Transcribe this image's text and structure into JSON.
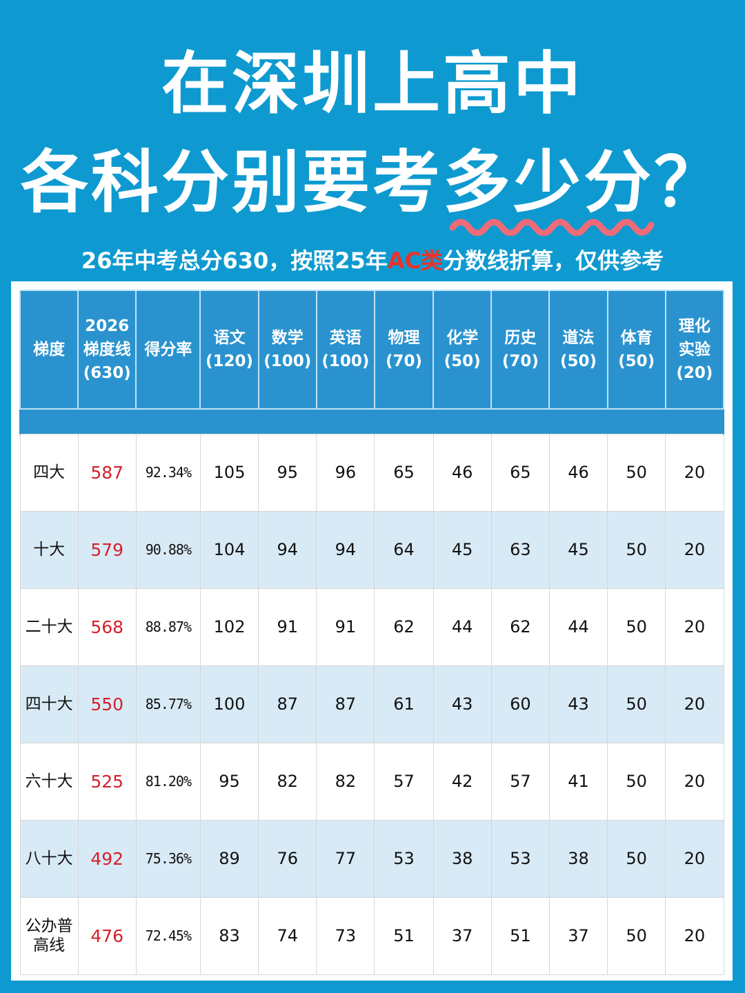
{
  "title": {
    "line1": "在深圳上高中",
    "line2_prefix": "各科分别要考",
    "line2_highlight": "多少分",
    "line2_suffix": "？"
  },
  "subtitle": {
    "prefix": "26年中考总分630，按照25年",
    "accent": "AC类",
    "suffix": "分数线折算，仅供参考"
  },
  "colors": {
    "background": "#0e9ad0",
    "header": "#2a93cf",
    "accent_red": "#d4202a",
    "wave": "#f06b78",
    "alt_row": "#d8eaf5"
  },
  "table": {
    "headers": [
      {
        "line1": "梯度",
        "line2": "",
        "line3": ""
      },
      {
        "line1": "2026",
        "line2": "梯度线",
        "line3": "(630)"
      },
      {
        "line1": "得分率",
        "line2": "",
        "line3": ""
      },
      {
        "line1": "语文",
        "line2": "(120)",
        "line3": ""
      },
      {
        "line1": "数学",
        "line2": "(100)",
        "line3": ""
      },
      {
        "line1": "英语",
        "line2": "(100)",
        "line3": ""
      },
      {
        "line1": "物理",
        "line2": "(70)",
        "line3": ""
      },
      {
        "line1": "化学",
        "line2": "(50)",
        "line3": ""
      },
      {
        "line1": "历史",
        "line2": "(70)",
        "line3": ""
      },
      {
        "line1": "道法",
        "line2": "(50)",
        "line3": ""
      },
      {
        "line1": "体育",
        "line2": "(50)",
        "line3": ""
      },
      {
        "line1": "理化",
        "line2": "实验",
        "line3": "(20)"
      }
    ],
    "rows": [
      {
        "tier": "四大",
        "line": "587",
        "rate": "92.34%",
        "scores": [
          "105",
          "95",
          "96",
          "65",
          "46",
          "65",
          "46",
          "50",
          "20"
        ]
      },
      {
        "tier": "十大",
        "line": "579",
        "rate": "90.88%",
        "scores": [
          "104",
          "94",
          "94",
          "64",
          "45",
          "63",
          "45",
          "50",
          "20"
        ]
      },
      {
        "tier": "二十大",
        "line": "568",
        "rate": "88.87%",
        "scores": [
          "102",
          "91",
          "91",
          "62",
          "44",
          "62",
          "44",
          "50",
          "20"
        ]
      },
      {
        "tier": "四十大",
        "line": "550",
        "rate": "85.77%",
        "scores": [
          "100",
          "87",
          "87",
          "61",
          "43",
          "60",
          "43",
          "50",
          "20"
        ]
      },
      {
        "tier": "六十大",
        "line": "525",
        "rate": "81.20%",
        "scores": [
          "95",
          "82",
          "82",
          "57",
          "42",
          "57",
          "41",
          "50",
          "20"
        ]
      },
      {
        "tier": "八十大",
        "line": "492",
        "rate": "75.36%",
        "scores": [
          "89",
          "76",
          "77",
          "53",
          "38",
          "53",
          "38",
          "50",
          "20"
        ]
      },
      {
        "tier": "公办普高线",
        "line": "476",
        "rate": "72.45%",
        "scores": [
          "83",
          "74",
          "73",
          "51",
          "37",
          "51",
          "37",
          "50",
          "20"
        ]
      }
    ]
  }
}
